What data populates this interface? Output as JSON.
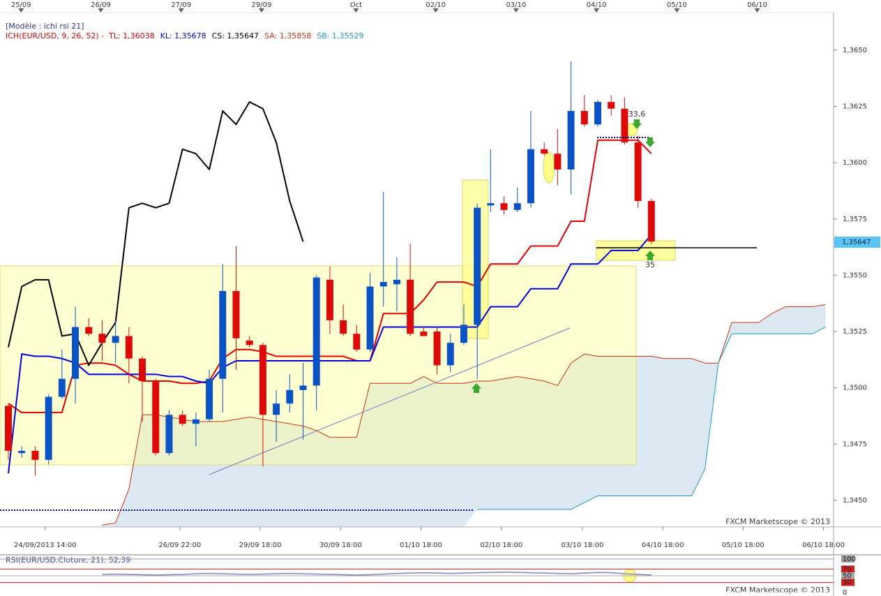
{
  "chart_data": [
    {
      "type": "candlestick",
      "header": "[Modèle : ichi rsi 21]",
      "indicator": "ICH(EUR/USD, 9, 26, 52) -",
      "x": [
        0,
        1,
        2,
        3,
        4,
        5,
        6,
        7,
        8,
        9,
        10,
        11,
        12,
        13,
        14,
        15,
        16,
        17,
        18,
        19,
        20,
        21,
        22,
        23,
        24,
        25,
        26,
        27,
        28,
        29,
        30,
        31,
        32,
        33,
        34,
        35,
        36,
        37,
        38,
        39,
        40,
        41,
        42,
        43,
        44,
        45,
        46,
        47,
        48,
        49,
        50,
        51,
        52,
        53,
        54,
        55,
        56,
        57,
        58,
        59,
        60,
        61
      ],
      "open": [
        1.3492,
        1.3471,
        1.3472,
        1.3468,
        1.3496,
        1.3504,
        1.3527,
        1.3524,
        1.352,
        1.3523,
        1.3513,
        1.3503,
        1.3471,
        1.3488,
        1.3484,
        1.3486,
        1.3504,
        1.3543,
        1.3521,
        1.3519,
        1.3488,
        1.3493,
        1.3499,
        1.3501,
        1.3548,
        1.353,
        1.3524,
        1.3517,
        1.3545,
        1.3546,
        1.3548,
        1.3525,
        1.3525,
        1.351,
        1.352,
        1.3528,
        1.3581,
        1.3582,
        1.3579,
        1.3582,
        1.3606,
        1.3604,
        1.3597,
        1.3623,
        1.3617,
        1.3627,
        1.3624,
        1.3609,
        1.3583,
        null,
        null,
        null,
        null,
        null,
        null,
        null,
        null,
        null,
        null,
        null,
        null,
        null
      ],
      "high": [
        1.3493,
        1.3474,
        1.3474,
        1.3497,
        1.3517,
        1.3536,
        1.3531,
        1.353,
        1.353,
        1.3527,
        1.3514,
        1.3504,
        1.349,
        1.349,
        1.3489,
        1.3508,
        1.3555,
        1.3563,
        1.3523,
        1.352,
        1.3499,
        1.3506,
        1.3511,
        1.355,
        1.3554,
        1.3537,
        1.3528,
        1.3551,
        1.3587,
        1.3558,
        1.3564,
        1.3527,
        1.3527,
        1.3524,
        1.3537,
        1.3582,
        1.3606,
        1.3585,
        1.3589,
        1.3623,
        1.3609,
        1.3615,
        1.3645,
        1.363,
        1.3628,
        1.363,
        1.3629,
        1.3612,
        1.3584,
        null,
        null,
        null,
        null,
        null,
        null,
        null,
        null,
        null,
        null,
        null,
        null,
        null
      ],
      "low": [
        1.3468,
        1.3469,
        1.3461,
        1.3466,
        1.3495,
        1.3493,
        1.3523,
        1.3512,
        1.3511,
        1.3502,
        1.3485,
        1.347,
        1.347,
        1.3483,
        1.3474,
        1.3485,
        1.3489,
        1.3508,
        1.3518,
        1.3465,
        1.3476,
        1.3489,
        1.3477,
        1.349,
        1.3524,
        1.3523,
        1.3516,
        1.3516,
        1.3536,
        1.3534,
        1.3523,
        1.3523,
        1.3506,
        1.3507,
        1.3519,
        1.3504,
        1.3578,
        1.3577,
        1.3578,
        1.358,
        1.3603,
        1.359,
        1.3586,
        1.3616,
        1.3616,
        1.3621,
        1.3608,
        1.358,
        1.3564,
        null,
        null,
        null,
        null,
        null,
        null,
        null,
        null,
        null,
        null,
        null,
        null,
        null
      ],
      "close": [
        1.3472,
        1.3472,
        1.3468,
        1.3496,
        1.3504,
        1.3527,
        1.3524,
        1.352,
        1.3523,
        1.3513,
        1.3503,
        1.3471,
        1.3488,
        1.3484,
        1.3486,
        1.3504,
        1.3543,
        1.3522,
        1.3519,
        1.3488,
        1.3493,
        1.3499,
        1.3501,
        1.3549,
        1.353,
        1.3524,
        1.3517,
        1.3545,
        1.3547,
        1.3548,
        1.3524,
        1.3523,
        1.351,
        1.352,
        1.3528,
        1.358,
        1.3582,
        1.3579,
        1.3582,
        1.3606,
        1.3604,
        1.3597,
        1.3623,
        1.3617,
        1.3627,
        1.3624,
        1.3609,
        1.3583,
        1.3565,
        null,
        null,
        null,
        null,
        null,
        null,
        null,
        null,
        null,
        null,
        null,
        null,
        null
      ],
      "up_color": "#0b53c4",
      "down_color": "#dd0a0a",
      "series": [
        {
          "name": "TL: 1,36038",
          "color": "#e00000",
          "width": 2,
          "values": [
            1.3493,
            1.3489,
            1.3489,
            1.3489,
            1.3489,
            1.351,
            1.3511,
            1.3511,
            1.351,
            1.3506,
            1.3503,
            1.3503,
            1.3503,
            1.3502,
            1.3502,
            1.3503,
            1.3513,
            1.3517,
            1.3517,
            1.3516,
            1.3514,
            1.3514,
            1.3514,
            1.3514,
            1.3514,
            1.3514,
            1.3512,
            1.3512,
            1.3533,
            1.3533,
            1.3533,
            1.3539,
            1.3547,
            1.3547,
            1.3547,
            1.3545,
            1.3555,
            1.3555,
            1.3555,
            1.3563,
            1.3563,
            1.3563,
            1.3574,
            1.3574,
            1.361,
            1.361,
            1.361,
            1.361,
            1.3604,
            null,
            null,
            null,
            null,
            null,
            null,
            null,
            null,
            null,
            null,
            null,
            null,
            null
          ]
        },
        {
          "name": "KL: 1,35678",
          "color": "#0000dd",
          "width": 2,
          "values": [
            1.3462,
            1.3515,
            1.3514,
            1.3514,
            1.3513,
            1.3511,
            1.3506,
            1.3506,
            1.3506,
            1.3506,
            1.3506,
            1.3506,
            1.3505,
            1.3505,
            1.3503,
            1.3502,
            1.3509,
            1.3512,
            1.3512,
            1.3512,
            1.3512,
            1.3512,
            1.3512,
            1.3512,
            1.3512,
            1.3512,
            1.3512,
            1.3512,
            1.3527,
            1.3527,
            1.3527,
            1.3527,
            1.3527,
            1.3527,
            1.3527,
            1.3527,
            1.3536,
            1.3536,
            1.3536,
            1.3544,
            1.3544,
            1.3544,
            1.3555,
            1.3555,
            1.3555,
            1.3561,
            1.3561,
            1.3561,
            1.3568,
            null,
            null,
            null,
            null,
            null,
            null,
            null,
            null,
            null,
            null,
            null,
            null,
            null
          ]
        },
        {
          "name": "CS: 1,35647",
          "color": "#000000",
          "width": 2,
          "values": [
            1.3518,
            1.3545,
            1.3548,
            1.3548,
            1.3523,
            1.3524,
            1.351,
            1.352,
            1.3529,
            1.358,
            1.3582,
            1.358,
            1.3582,
            1.3606,
            1.3604,
            1.3597,
            1.3623,
            1.3617,
            1.3627,
            1.3624,
            1.3609,
            1.3583,
            1.3565,
            null,
            null,
            null,
            null,
            null,
            null,
            null,
            null,
            null,
            null,
            null,
            null,
            null,
            null,
            null,
            null,
            null,
            null,
            null,
            null,
            null,
            null,
            null,
            null,
            null,
            null,
            null,
            null,
            null,
            null,
            null,
            null,
            null,
            null,
            null,
            null,
            null,
            null,
            null
          ]
        },
        {
          "name": "SA: 1,35858",
          "color": "#cc3311",
          "width": 1,
          "values": [
            null,
            null,
            null,
            null,
            null,
            null,
            null,
            1.3439,
            1.344,
            1.3455,
            1.3488,
            1.3488,
            1.3487,
            1.3486,
            1.3485,
            1.3485,
            1.3485,
            1.3486,
            1.3487,
            1.3486,
            1.3485,
            1.3484,
            1.3483,
            1.3481,
            1.3478,
            1.3478,
            1.3478,
            1.3502,
            1.3502,
            1.3502,
            1.3502,
            1.3505,
            1.3502,
            1.3502,
            1.3502,
            1.3503,
            1.3503,
            1.3504,
            1.3505,
            1.3504,
            1.3503,
            1.3501,
            1.3511,
            1.3515,
            1.3514,
            1.3514,
            1.3514,
            1.3514,
            1.3514,
            1.3513,
            1.3513,
            1.3513,
            1.3511,
            1.3511,
            1.3529,
            1.3529,
            1.3529,
            1.3533,
            1.3536,
            1.3536,
            1.3536,
            1.3537
          ]
        },
        {
          "name": "SB: 1,35529",
          "color": "#1b98c0",
          "width": 1,
          "values": [
            null,
            null,
            null,
            null,
            null,
            null,
            null,
            null,
            null,
            null,
            null,
            null,
            null,
            null,
            null,
            null,
            null,
            null,
            null,
            null,
            null,
            null,
            null,
            null,
            null,
            null,
            null,
            null,
            null,
            null,
            null,
            null,
            null,
            null,
            null,
            1.3446,
            1.3446,
            1.3446,
            1.3446,
            1.3446,
            1.3446,
            1.3446,
            1.3446,
            1.3449,
            1.3452,
            1.3452,
            1.3452,
            1.3452,
            1.3452,
            1.3452,
            1.3452,
            1.3452,
            1.3464,
            1.3511,
            1.3524,
            1.3524,
            1.3524,
            1.3524,
            1.3524,
            1.3524,
            1.3524,
            1.3527
          ]
        }
      ],
      "cloud_color": "#dce9f3",
      "xlim": [
        -0.625,
        61.6
      ],
      "ylim": [
        1.34382,
        1.36667
      ],
      "yticks": [
        {
          "value": 1.345,
          "label": "1,3450"
        },
        {
          "value": 1.3475,
          "label": "1,3475"
        },
        {
          "value": 1.35,
          "label": "1,3500"
        },
        {
          "value": 1.3525,
          "label": "1,3525"
        },
        {
          "value": 1.355,
          "label": "1,3550"
        },
        {
          "value": 1.3575,
          "label": "1,3575"
        },
        {
          "value": 1.36,
          "label": "1,3600"
        },
        {
          "value": 1.3625,
          "label": "1,3625"
        },
        {
          "value": 1.365,
          "label": "1,3650"
        }
      ],
      "xticks": [
        {
          "value": 2.75,
          "label": "24/09/2013 14:00"
        },
        {
          "value": 12.8,
          "label": "26/09 22:00"
        },
        {
          "value": 18.8,
          "label": "29/09 18:00"
        },
        {
          "value": 24.8,
          "label": "30/09 18:00"
        },
        {
          "value": 30.8,
          "label": "01/10 18:00"
        },
        {
          "value": 36.8,
          "label": "02/10 18:00"
        },
        {
          "value": 42.85,
          "label": "03/10 18:00"
        },
        {
          "value": 48.85,
          "label": "04/10 18:00"
        },
        {
          "value": 54.85,
          "label": "05/10 18:00"
        },
        {
          "value": 60.85,
          "label": "06/10 18:00"
        }
      ],
      "top_xticks": [
        {
          "value": 0.95,
          "label": "25/09"
        },
        {
          "value": 6.9,
          "label": "26/09"
        },
        {
          "value": 12.9,
          "label": "27/09"
        },
        {
          "value": 18.9,
          "label": "29/09"
        },
        {
          "value": 25.95,
          "label": "Oct"
        },
        {
          "value": 31.9,
          "label": "02/10"
        },
        {
          "value": 37.9,
          "label": "03/10"
        },
        {
          "value": 43.9,
          "label": "04/10"
        },
        {
          "value": 49.9,
          "label": "05/10"
        },
        {
          "value": 55.9,
          "label": "06/10"
        }
      ],
      "last_price": {
        "value": 1.35647,
        "label": "1,35647"
      },
      "annotations": [
        "33,6",
        "35"
      ],
      "watermark": "FXCM Marketscope © 2013"
    },
    {
      "type": "line",
      "title": "RSI(EUR/USD.Cloture, 21): 52,39",
      "x": [
        0,
        1,
        2,
        3,
        4,
        5,
        6,
        7,
        8,
        9,
        10,
        11,
        12,
        13,
        14,
        15,
        16,
        17,
        18,
        19,
        20,
        21,
        22,
        23,
        24,
        25,
        26,
        27,
        28,
        29,
        30,
        31,
        32,
        33,
        34,
        35,
        36,
        37,
        38,
        39,
        40,
        41,
        42,
        43,
        44,
        45,
        46,
        47,
        48
      ],
      "values": [
        null,
        null,
        null,
        null,
        null,
        null,
        null,
        54,
        55,
        54,
        53,
        52,
        53,
        54,
        56,
        57,
        56,
        55,
        54,
        55,
        56,
        57,
        56,
        55,
        54,
        53,
        52,
        53,
        55,
        57,
        58,
        59,
        58,
        57,
        58,
        59,
        60,
        61,
        60,
        59,
        58,
        57,
        56,
        58,
        60,
        59,
        56,
        54,
        52.39
      ],
      "color": "#8080c8",
      "xlim": [
        -0.625,
        61.6
      ],
      "ylim": [
        0,
        100
      ],
      "yticks": [
        100,
        70,
        50,
        30,
        0
      ],
      "ytick_colors": [
        "#9a9a9a",
        "#d02020",
        "#a8a8a8",
        "#d02020",
        "#ffffff"
      ],
      "watermark": "FXCM Marketscope © 2013"
    }
  ]
}
